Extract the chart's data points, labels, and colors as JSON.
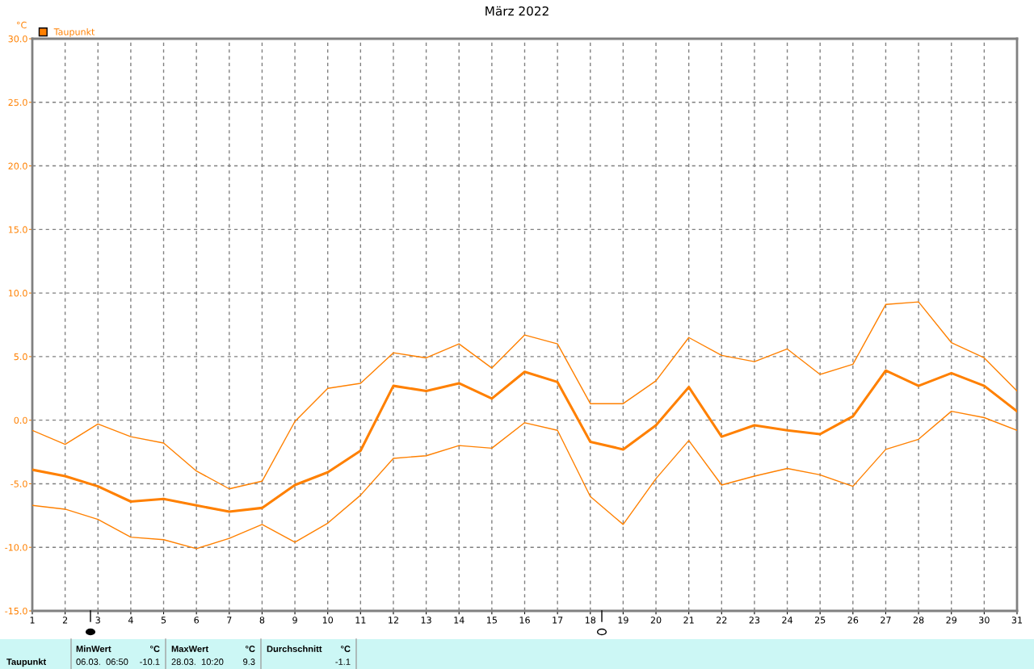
{
  "chart_data": {
    "type": "line",
    "title": "März 2022",
    "ylabel": "°C",
    "x": [
      1,
      2,
      3,
      4,
      5,
      6,
      7,
      8,
      9,
      10,
      11,
      12,
      13,
      14,
      15,
      16,
      17,
      18,
      19,
      20,
      21,
      22,
      23,
      24,
      25,
      26,
      27,
      28,
      29,
      30,
      31
    ],
    "series": [
      {
        "name": "Taupunkt",
        "color": "#ff8000",
        "values": [
          -3.9,
          -4.4,
          -5.2,
          -6.4,
          -6.2,
          -6.7,
          -7.2,
          -6.9,
          -5.1,
          -4.1,
          -2.4,
          2.7,
          2.3,
          2.9,
          1.7,
          3.8,
          3.0,
          -1.7,
          -2.3,
          -0.4,
          2.6,
          -1.3,
          -0.4,
          -0.8,
          -1.1,
          0.3,
          3.9,
          2.7,
          3.7,
          2.7,
          0.7
        ]
      },
      {
        "color": "#ff8000",
        "values": [
          -0.8,
          -1.9,
          -0.3,
          -1.3,
          -1.8,
          -4.0,
          -5.4,
          -4.8,
          -0.1,
          2.5,
          2.9,
          5.3,
          4.9,
          6.0,
          4.1,
          6.7,
          6.0,
          1.3,
          1.3,
          3.1,
          6.5,
          5.1,
          4.6,
          5.6,
          3.6,
          4.4,
          9.1,
          9.3,
          6.1,
          4.9,
          2.3
        ]
      },
      {
        "color": "#ff8000",
        "values": [
          -6.7,
          -7.0,
          -7.8,
          -9.2,
          -9.4,
          -10.1,
          -9.3,
          -8.2,
          -9.6,
          -8.1,
          -5.9,
          -3.0,
          -2.8,
          -2.0,
          -2.2,
          -0.2,
          -0.8,
          -6.0,
          -8.2,
          -4.6,
          -1.6,
          -5.1,
          -4.4,
          -3.8,
          -4.3,
          -5.2,
          -2.3,
          -1.5,
          0.7,
          0.2,
          -0.8
        ]
      }
    ],
    "xlim": [
      1,
      31
    ],
    "xticks": [
      1,
      2,
      3,
      4,
      5,
      6,
      7,
      8,
      9,
      10,
      11,
      12,
      13,
      14,
      15,
      16,
      17,
      18,
      19,
      20,
      21,
      22,
      23,
      24,
      25,
      26,
      27,
      28,
      29,
      30,
      31
    ],
    "ylim": [
      -15,
      30
    ],
    "yticks": [
      {
        "value": -15,
        "label": "-15.0"
      },
      {
        "value": -10,
        "label": "-10.0"
      },
      {
        "value": -5,
        "label": "-5.0"
      },
      {
        "value": 0,
        "label": "0.0"
      },
      {
        "value": 5,
        "label": "5.0"
      },
      {
        "value": 10,
        "label": "10.0"
      },
      {
        "value": 15,
        "label": "15.0"
      },
      {
        "value": 20,
        "label": "20.0"
      },
      {
        "value": 25,
        "label": "25.0"
      },
      {
        "value": 30,
        "label": "30.0"
      }
    ],
    "grid": true,
    "legend": "top left",
    "marker": "none",
    "line_style": "solid",
    "annotations": [
      "Taupunkt",
      "MinWert",
      "°C",
      "06.03.  06:50",
      "-10.1",
      "MaxWert",
      "°C",
      "28.03.  10:20",
      "9.3",
      "Durchschnitt",
      "°C",
      "-1.1"
    ]
  }
}
